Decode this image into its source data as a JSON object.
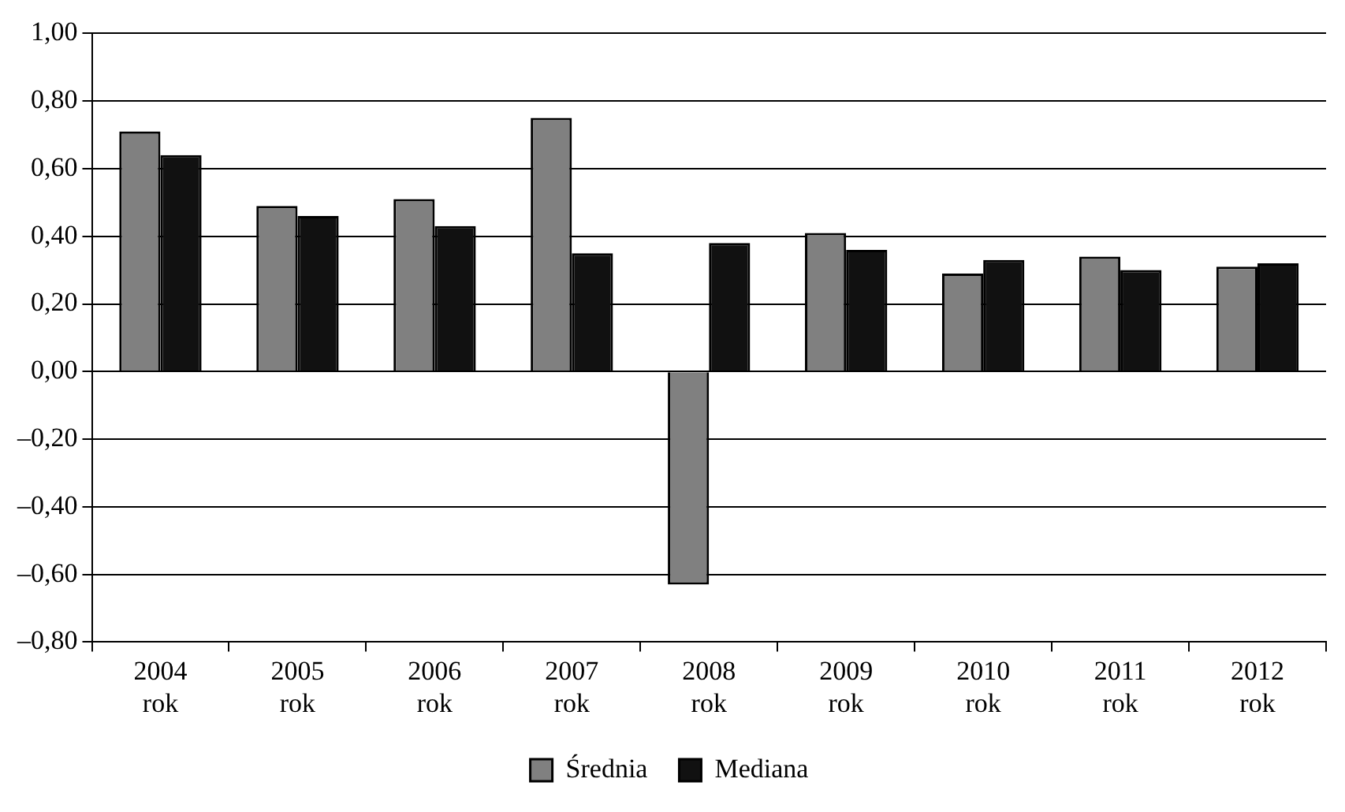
{
  "chart_data": {
    "type": "bar",
    "categories": [
      "2004 rok",
      "2005 rok",
      "2006 rok",
      "2007 rok",
      "2008 rok",
      "2009 rok",
      "2010 rok",
      "2011 rok",
      "2012 rok"
    ],
    "series": [
      {
        "name": "Średnia",
        "color": "#808080",
        "values": [
          0.71,
          0.49,
          0.51,
          0.75,
          -0.63,
          0.41,
          0.29,
          0.34,
          0.31
        ]
      },
      {
        "name": "Mediana",
        "color": "#111111",
        "values": [
          0.64,
          0.46,
          0.43,
          0.35,
          0.38,
          0.36,
          0.33,
          0.3,
          0.32
        ]
      }
    ],
    "ylim": [
      -0.8,
      1.0
    ],
    "yticks": [
      {
        "value": -0.8,
        "label": "–0,80"
      },
      {
        "value": -0.6,
        "label": "–0,60"
      },
      {
        "value": -0.4,
        "label": "–0,40"
      },
      {
        "value": -0.2,
        "label": "–0,20"
      },
      {
        "value": 0,
        "label": "0,00"
      },
      {
        "value": 0.2,
        "label": "0,20"
      },
      {
        "value": 0.4,
        "label": "0,40"
      },
      {
        "value": 0.6,
        "label": "0,60"
      },
      {
        "value": 0.8,
        "label": "0,80"
      },
      {
        "value": 1.0,
        "label": "1,00"
      }
    ],
    "grid": "y",
    "legend": "bottom"
  }
}
